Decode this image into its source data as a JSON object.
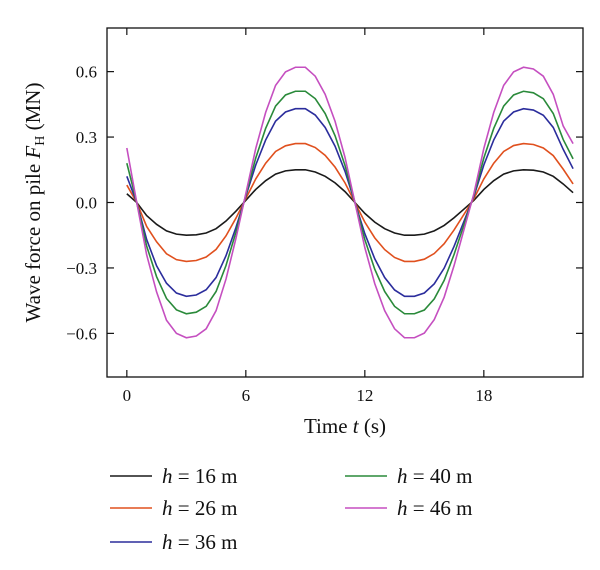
{
  "chart_data": {
    "type": "line",
    "xlabel": "Time t (s)",
    "ylabel": "Wave force on pile F_H (MN)",
    "xlim": [
      -1,
      23
    ],
    "ylim": [
      -0.8,
      0.8
    ],
    "xticks": [
      0,
      6,
      12,
      18
    ],
    "yticks": [
      0.6,
      0.3,
      0.0,
      -0.3,
      -0.6
    ],
    "tick_labels": {
      "x": [
        "0",
        "6",
        "12",
        "18"
      ],
      "y": [
        "0.6",
        "0.3",
        "0.0",
        "−0.3",
        "−0.6"
      ]
    },
    "grid": false,
    "legend_position": "bottom",
    "x": [
      0.0,
      0.5,
      1.0,
      1.5,
      2.0,
      2.5,
      3.0,
      3.5,
      4.0,
      4.5,
      5.0,
      5.5,
      6.0,
      6.5,
      7.0,
      7.5,
      8.0,
      8.5,
      9.0,
      9.5,
      10.0,
      10.5,
      11.0,
      11.5,
      12.0,
      12.5,
      13.0,
      13.5,
      14.0,
      14.5,
      15.0,
      15.5,
      16.0,
      16.5,
      17.0,
      17.5,
      18.0,
      18.5,
      19.0,
      19.5,
      20.0,
      20.5,
      21.0,
      21.5,
      22.0,
      22.5
    ],
    "series": [
      {
        "name": "h = 16 m",
        "color": "#1a1a1a",
        "amplitude": 0.15,
        "values": [
          0.04,
          0.0,
          -0.06,
          -0.1,
          -0.13,
          -0.145,
          -0.15,
          -0.148,
          -0.14,
          -0.12,
          -0.085,
          -0.04,
          0.01,
          0.06,
          0.1,
          0.13,
          0.145,
          0.15,
          0.15,
          0.14,
          0.12,
          0.09,
          0.05,
          0.0,
          -0.05,
          -0.09,
          -0.12,
          -0.14,
          -0.15,
          -0.15,
          -0.145,
          -0.13,
          -0.105,
          -0.07,
          -0.03,
          0.01,
          0.06,
          0.1,
          0.13,
          0.145,
          0.15,
          0.148,
          0.14,
          0.12,
          0.085,
          0.045
        ]
      },
      {
        "name": "h = 26 m",
        "color": "#e0501e",
        "amplitude": 0.27,
        "values": [
          0.08,
          0.0,
          -0.11,
          -0.18,
          -0.235,
          -0.262,
          -0.27,
          -0.266,
          -0.25,
          -0.215,
          -0.153,
          -0.072,
          0.018,
          0.108,
          0.18,
          0.234,
          0.26,
          0.27,
          0.27,
          0.252,
          0.216,
          0.162,
          0.09,
          0.0,
          -0.09,
          -0.162,
          -0.216,
          -0.252,
          -0.27,
          -0.27,
          -0.26,
          -0.234,
          -0.189,
          -0.126,
          -0.054,
          0.018,
          0.108,
          0.18,
          0.234,
          0.261,
          0.27,
          0.266,
          0.25,
          0.215,
          0.153,
          0.085
        ]
      },
      {
        "name": "h = 36 m",
        "color": "#2b2d9c",
        "amplitude": 0.43,
        "values": [
          0.12,
          0.0,
          -0.17,
          -0.29,
          -0.37,
          -0.415,
          -0.43,
          -0.424,
          -0.4,
          -0.344,
          -0.244,
          -0.115,
          0.029,
          0.172,
          0.287,
          0.373,
          0.415,
          0.43,
          0.43,
          0.401,
          0.344,
          0.258,
          0.143,
          0.0,
          -0.143,
          -0.258,
          -0.344,
          -0.401,
          -0.43,
          -0.43,
          -0.415,
          -0.373,
          -0.301,
          -0.201,
          -0.086,
          0.029,
          0.172,
          0.287,
          0.373,
          0.415,
          0.43,
          0.424,
          0.4,
          0.344,
          0.244,
          0.155
        ]
      },
      {
        "name": "h = 40 m",
        "color": "#2a8a3a",
        "amplitude": 0.51,
        "values": [
          0.18,
          0.0,
          -0.2,
          -0.34,
          -0.44,
          -0.492,
          -0.51,
          -0.503,
          -0.476,
          -0.408,
          -0.289,
          -0.136,
          0.034,
          0.204,
          0.34,
          0.442,
          0.493,
          0.51,
          0.51,
          0.476,
          0.408,
          0.306,
          0.17,
          0.0,
          -0.17,
          -0.306,
          -0.408,
          -0.476,
          -0.51,
          -0.51,
          -0.493,
          -0.442,
          -0.357,
          -0.238,
          -0.102,
          0.034,
          0.204,
          0.34,
          0.442,
          0.493,
          0.51,
          0.503,
          0.476,
          0.408,
          0.289,
          0.2
        ]
      },
      {
        "name": "h = 46 m",
        "color": "#c54fc0",
        "amplitude": 0.62,
        "values": [
          0.25,
          0.0,
          -0.24,
          -0.41,
          -0.54,
          -0.6,
          -0.62,
          -0.612,
          -0.579,
          -0.496,
          -0.351,
          -0.165,
          0.041,
          0.248,
          0.413,
          0.537,
          0.599,
          0.62,
          0.62,
          0.579,
          0.496,
          0.372,
          0.207,
          0.0,
          -0.207,
          -0.372,
          -0.496,
          -0.579,
          -0.62,
          -0.62,
          -0.599,
          -0.537,
          -0.434,
          -0.289,
          -0.124,
          0.041,
          0.248,
          0.413,
          0.537,
          0.599,
          0.62,
          0.612,
          0.579,
          0.496,
          0.351,
          0.27
        ]
      }
    ]
  }
}
